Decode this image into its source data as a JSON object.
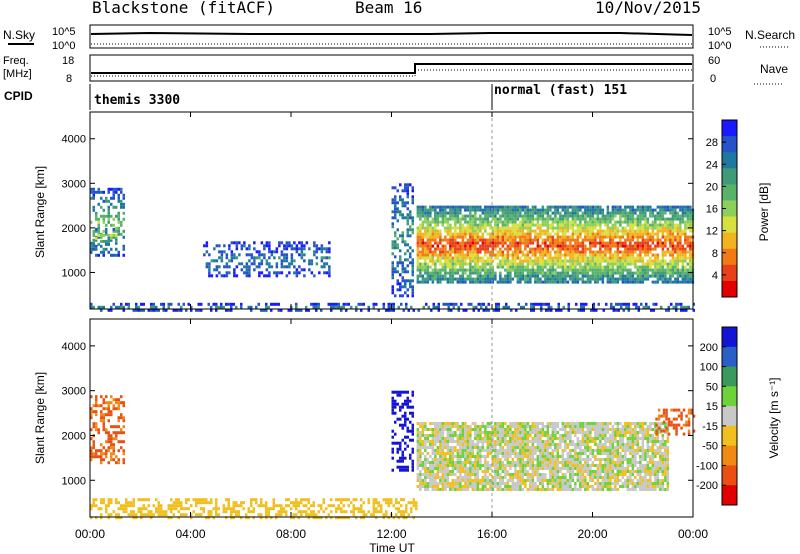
{
  "header": {
    "station": "Blackstone (fitACF)",
    "beam": "Beam 16",
    "date": "10/Nov/2015"
  },
  "strip": {
    "nsky_label": "N.Sky",
    "nsearch_label": "N.Search",
    "nsky_ticks": [
      "10^5",
      "10^0"
    ],
    "freq_label_1": "Freq.",
    "freq_label_2": "[MHz]",
    "freq_ticks": [
      "18",
      "8"
    ],
    "nave_label": "Nave",
    "nave_ticks": [
      "60",
      "0"
    ],
    "cpid_label": "CPID",
    "cpid_segments": [
      {
        "label": "themis 3300",
        "start_hour": 0
      },
      {
        "label": "normal (fast) 151",
        "start_hour": 16
      }
    ]
  },
  "chart_data": [
    {
      "type": "heatmap",
      "panel": "power",
      "xlabel": "",
      "ylabel": "Slant Range [km]",
      "x_range_hours": [
        0,
        24
      ],
      "ylim": [
        180,
        4600
      ],
      "y_ticks": [
        1000,
        2000,
        3000,
        4000
      ],
      "colorbar": {
        "label": "Power [dB]",
        "ticks": [
          "28",
          "24",
          "20",
          "16",
          "12",
          "8",
          "4"
        ],
        "range": [
          0,
          30
        ],
        "colors": [
          "#1a1aff",
          "#2454c8",
          "#1f78a0",
          "#3f9a7a",
          "#58b26a",
          "#8ccf5a",
          "#d8e040",
          "#f2b41e",
          "#f07a14",
          "#e8401a",
          "#e00000"
        ]
      },
      "regions": [
        {
          "name": "near-range clutter",
          "hours": [
            0,
            24
          ],
          "range_km": [
            180,
            320
          ],
          "value": 8
        },
        {
          "name": "early echo",
          "hours": [
            0,
            1.3
          ],
          "range_km": [
            1400,
            2900
          ],
          "value": 14
        },
        {
          "name": "early core",
          "hours": [
            0.1,
            1.0
          ],
          "range_km": [
            1650,
            2000
          ],
          "value": 20
        },
        {
          "name": "scatter 05-10 UT",
          "hours": [
            4.5,
            9.5
          ],
          "range_km": [
            900,
            1700
          ],
          "value": 7
        },
        {
          "name": "spike 12:30",
          "hours": [
            12.0,
            12.8
          ],
          "range_km": [
            500,
            3000
          ],
          "value": 10
        },
        {
          "name": "main band",
          "hours": [
            13,
            24
          ],
          "range_km": [
            800,
            2500
          ],
          "value": 26
        }
      ]
    },
    {
      "type": "heatmap",
      "panel": "velocity",
      "xlabel": "Time UT",
      "ylabel": "Slant Range [km]",
      "x_range_hours": [
        0,
        24
      ],
      "x_ticks": [
        "00:00",
        "04:00",
        "08:00",
        "12:00",
        "16:00",
        "20:00",
        "00:00"
      ],
      "ylim": [
        180,
        4600
      ],
      "y_ticks": [
        1000,
        2000,
        3000,
        4000
      ],
      "colorbar": {
        "label": "Velocity [m s⁻¹]",
        "ticks": [
          "200",
          "100",
          "50",
          "15",
          "-15",
          "-50",
          "-100",
          "-200"
        ],
        "colors": [
          "#1414d2",
          "#2a5fc8",
          "#3a9a5e",
          "#6ed23a",
          "#c8c8c8",
          "#f0c020",
          "#f08a14",
          "#ea5014",
          "#e00000"
        ]
      },
      "regions": [
        {
          "name": "early echo",
          "hours": [
            0,
            1.3
          ],
          "range_km": [
            1400,
            2900
          ],
          "value": -80
        },
        {
          "name": "near-range ground",
          "hours": [
            0,
            13
          ],
          "range_km": [
            180,
            600
          ],
          "value": -20
        },
        {
          "name": "spike 12:30",
          "hours": [
            12.0,
            12.8
          ],
          "range_km": [
            1200,
            3000
          ],
          "value": 200
        },
        {
          "name": "main band",
          "hours": [
            13,
            23
          ],
          "range_km": [
            800,
            2300
          ],
          "value": 0
        },
        {
          "name": "late echo",
          "hours": [
            22.5,
            24
          ],
          "range_km": [
            2000,
            2600
          ],
          "value": -80
        }
      ]
    }
  ]
}
